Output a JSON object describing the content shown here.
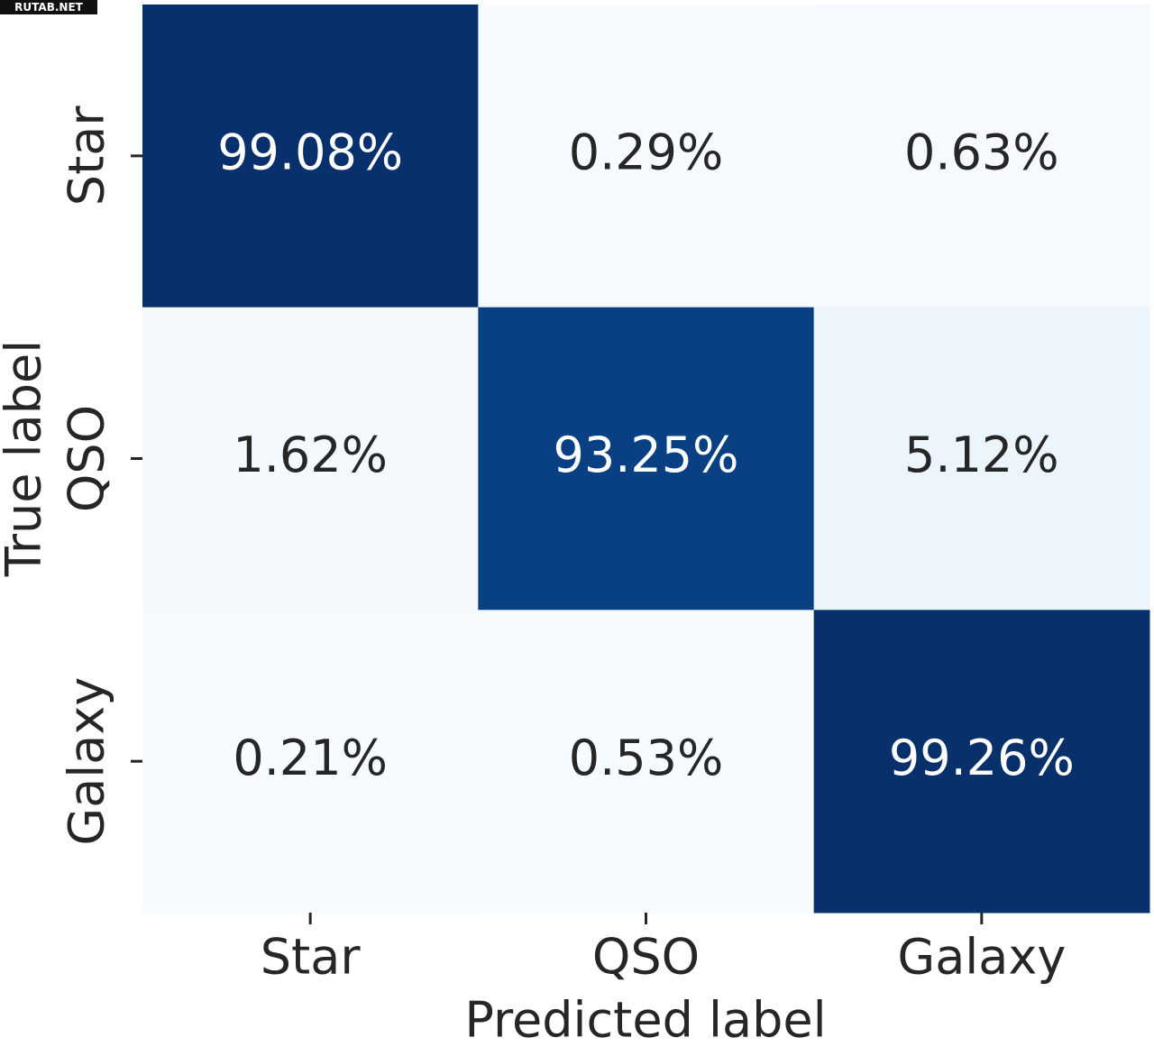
{
  "watermark": "RUTAB.NET",
  "chart_data": {
    "type": "heatmap",
    "xlabel": "Predicted label",
    "ylabel": "True label",
    "x": [
      "Star",
      "QSO",
      "Galaxy"
    ],
    "y": [
      "Star",
      "QSO",
      "Galaxy"
    ],
    "values": [
      [
        99.08,
        0.29,
        0.63
      ],
      [
        1.62,
        93.25,
        5.12
      ],
      [
        0.21,
        0.53,
        99.26
      ]
    ],
    "value_labels": [
      [
        "99.08%",
        "0.29%",
        "0.63%"
      ],
      [
        "1.62%",
        "93.25%",
        "5.12%"
      ],
      [
        "0.21%",
        "0.53%",
        "99.26%"
      ]
    ],
    "colormap": "Blues"
  }
}
